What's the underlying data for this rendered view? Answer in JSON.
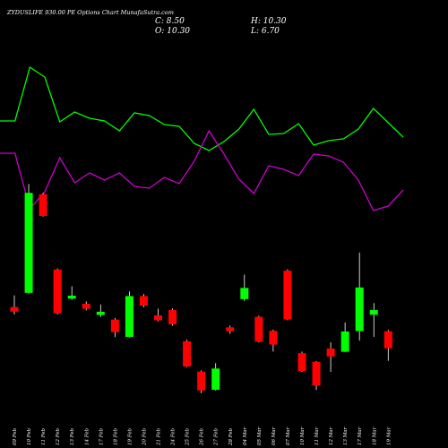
{
  "header": {
    "title": "ZYDUSLIFE 930.00 PE Options  Chart MunafaSutra.com",
    "close_label": "C: 8.50",
    "high_label": "H: 10.30",
    "open_label": "O: 10.30",
    "low_label": "L: 6.70"
  },
  "colors": {
    "background": "#000000",
    "up": "#00ff00",
    "down": "#ff0000",
    "wick": "#ffffff",
    "green_line": "#00ff00",
    "magenta_line": "#cc00cc"
  },
  "chart_data": [
    {
      "type": "line",
      "series": [
        {
          "values": [
            135,
            135,
            75,
            86,
            136,
            125,
            132,
            135,
            146,
            126,
            129,
            139,
            141,
            160,
            168,
            158,
            144,
            122,
            150,
            149,
            138,
            162,
            157,
            155,
            144,
            121,
            137,
            153
          ]
        },
        {
          "values": [
            171,
            171,
            233,
            214,
            176,
            204,
            193,
            201,
            193,
            208,
            210,
            198,
            205,
            180,
            146,
            172,
            200,
            216,
            185,
            189,
            196,
            172,
            174,
            181,
            201,
            235,
            230,
            212
          ]
        }
      ]
    },
    {
      "type": "candlestick",
      "categories": [
        "09 Feb",
        "10 Feb",
        "11 Feb",
        "12 Feb",
        "13 Feb",
        "14 Feb",
        "17 Feb",
        "18 Feb",
        "19 Feb",
        "20 Feb",
        "21 Feb",
        "24 Feb",
        "25 Feb",
        "26 Feb",
        "27 Feb",
        "28 Feb",
        "04 Mar",
        "05 Mar",
        "06 Mar",
        "07 Mar",
        "10 Mar",
        "11 Mar",
        "12 Mar",
        "13 Mar",
        "17 Mar",
        "18 Mar",
        "19 Mar"
      ],
      "candles": [
        {
          "open": 18.2,
          "close": 16.2,
          "high": 23.2,
          "low": 15.0
        },
        {
          "open": 24.3,
          "close": 67.2,
          "high": 71.0,
          "low": 24.0
        },
        {
          "open": 66.6,
          "close": 57.3,
          "high": 67.2,
          "low": 57.0
        },
        {
          "open": 34.3,
          "close": 15.5,
          "high": 34.8,
          "low": 15.0
        },
        {
          "open": 21.8,
          "close": 23.1,
          "high": 27.1,
          "low": 21.3
        },
        {
          "open": 19.6,
          "close": 17.5,
          "high": 20.6,
          "low": 16.8
        },
        {
          "open": 14.8,
          "close": 16.2,
          "high": 19.3,
          "low": 13.9
        },
        {
          "open": 12.8,
          "close": 7.4,
          "high": 13.5,
          "low": 5.3
        },
        {
          "open": 5.4,
          "close": 22.9,
          "high": 24.9,
          "low": 5.2
        },
        {
          "open": 22.9,
          "close": 18.8,
          "high": 23.8,
          "low": 18.1
        },
        {
          "open": 14.6,
          "close": 12.5,
          "high": 17.5,
          "low": 12.0
        },
        {
          "open": 16.9,
          "close": 10.8,
          "high": 17.6,
          "low": 10.2
        },
        {
          "open": 3.5,
          "close": -7.3,
          "high": 4.2,
          "low": -7.6
        },
        {
          "open": -9.5,
          "close": -17.6,
          "high": -9.0,
          "low": -18.8
        },
        {
          "open": -17.3,
          "close": -8.2,
          "high": -5.9,
          "low": -17.6
        },
        {
          "open": 9.5,
          "close": 7.8,
          "high": 10.3,
          "low": 6.7
        },
        {
          "open": 21.6,
          "close": 26.4,
          "high": 32.1,
          "low": 20.7
        },
        {
          "open": 14.0,
          "close": 3.3,
          "high": 14.5,
          "low": 3.0
        },
        {
          "open": 8.0,
          "close": 2.1,
          "high": 8.5,
          "low": -0.9
        },
        {
          "open": 33.8,
          "close": 12.9,
          "high": 34.4,
          "low": 12.5
        },
        {
          "open": -1.6,
          "close": -9.3,
          "high": -0.9,
          "low": -9.6
        },
        {
          "open": -5.3,
          "close": -15.5,
          "high": -5.0,
          "low": -17.4
        },
        {
          "open": 0.4,
          "close": -3.0,
          "high": 3.1,
          "low": -9.6
        },
        {
          "open": -1.0,
          "close": 7.7,
          "high": 11.6,
          "low": -1.2
        },
        {
          "open": 7.9,
          "close": 26.6,
          "high": 41.6,
          "low": 3.8
        },
        {
          "open": 14.9,
          "close": 16.9,
          "high": 19.9,
          "low": 5.4
        },
        {
          "open": 7.8,
          "close": 0.5,
          "high": 8.4,
          "low": -4.9
        }
      ]
    }
  ]
}
